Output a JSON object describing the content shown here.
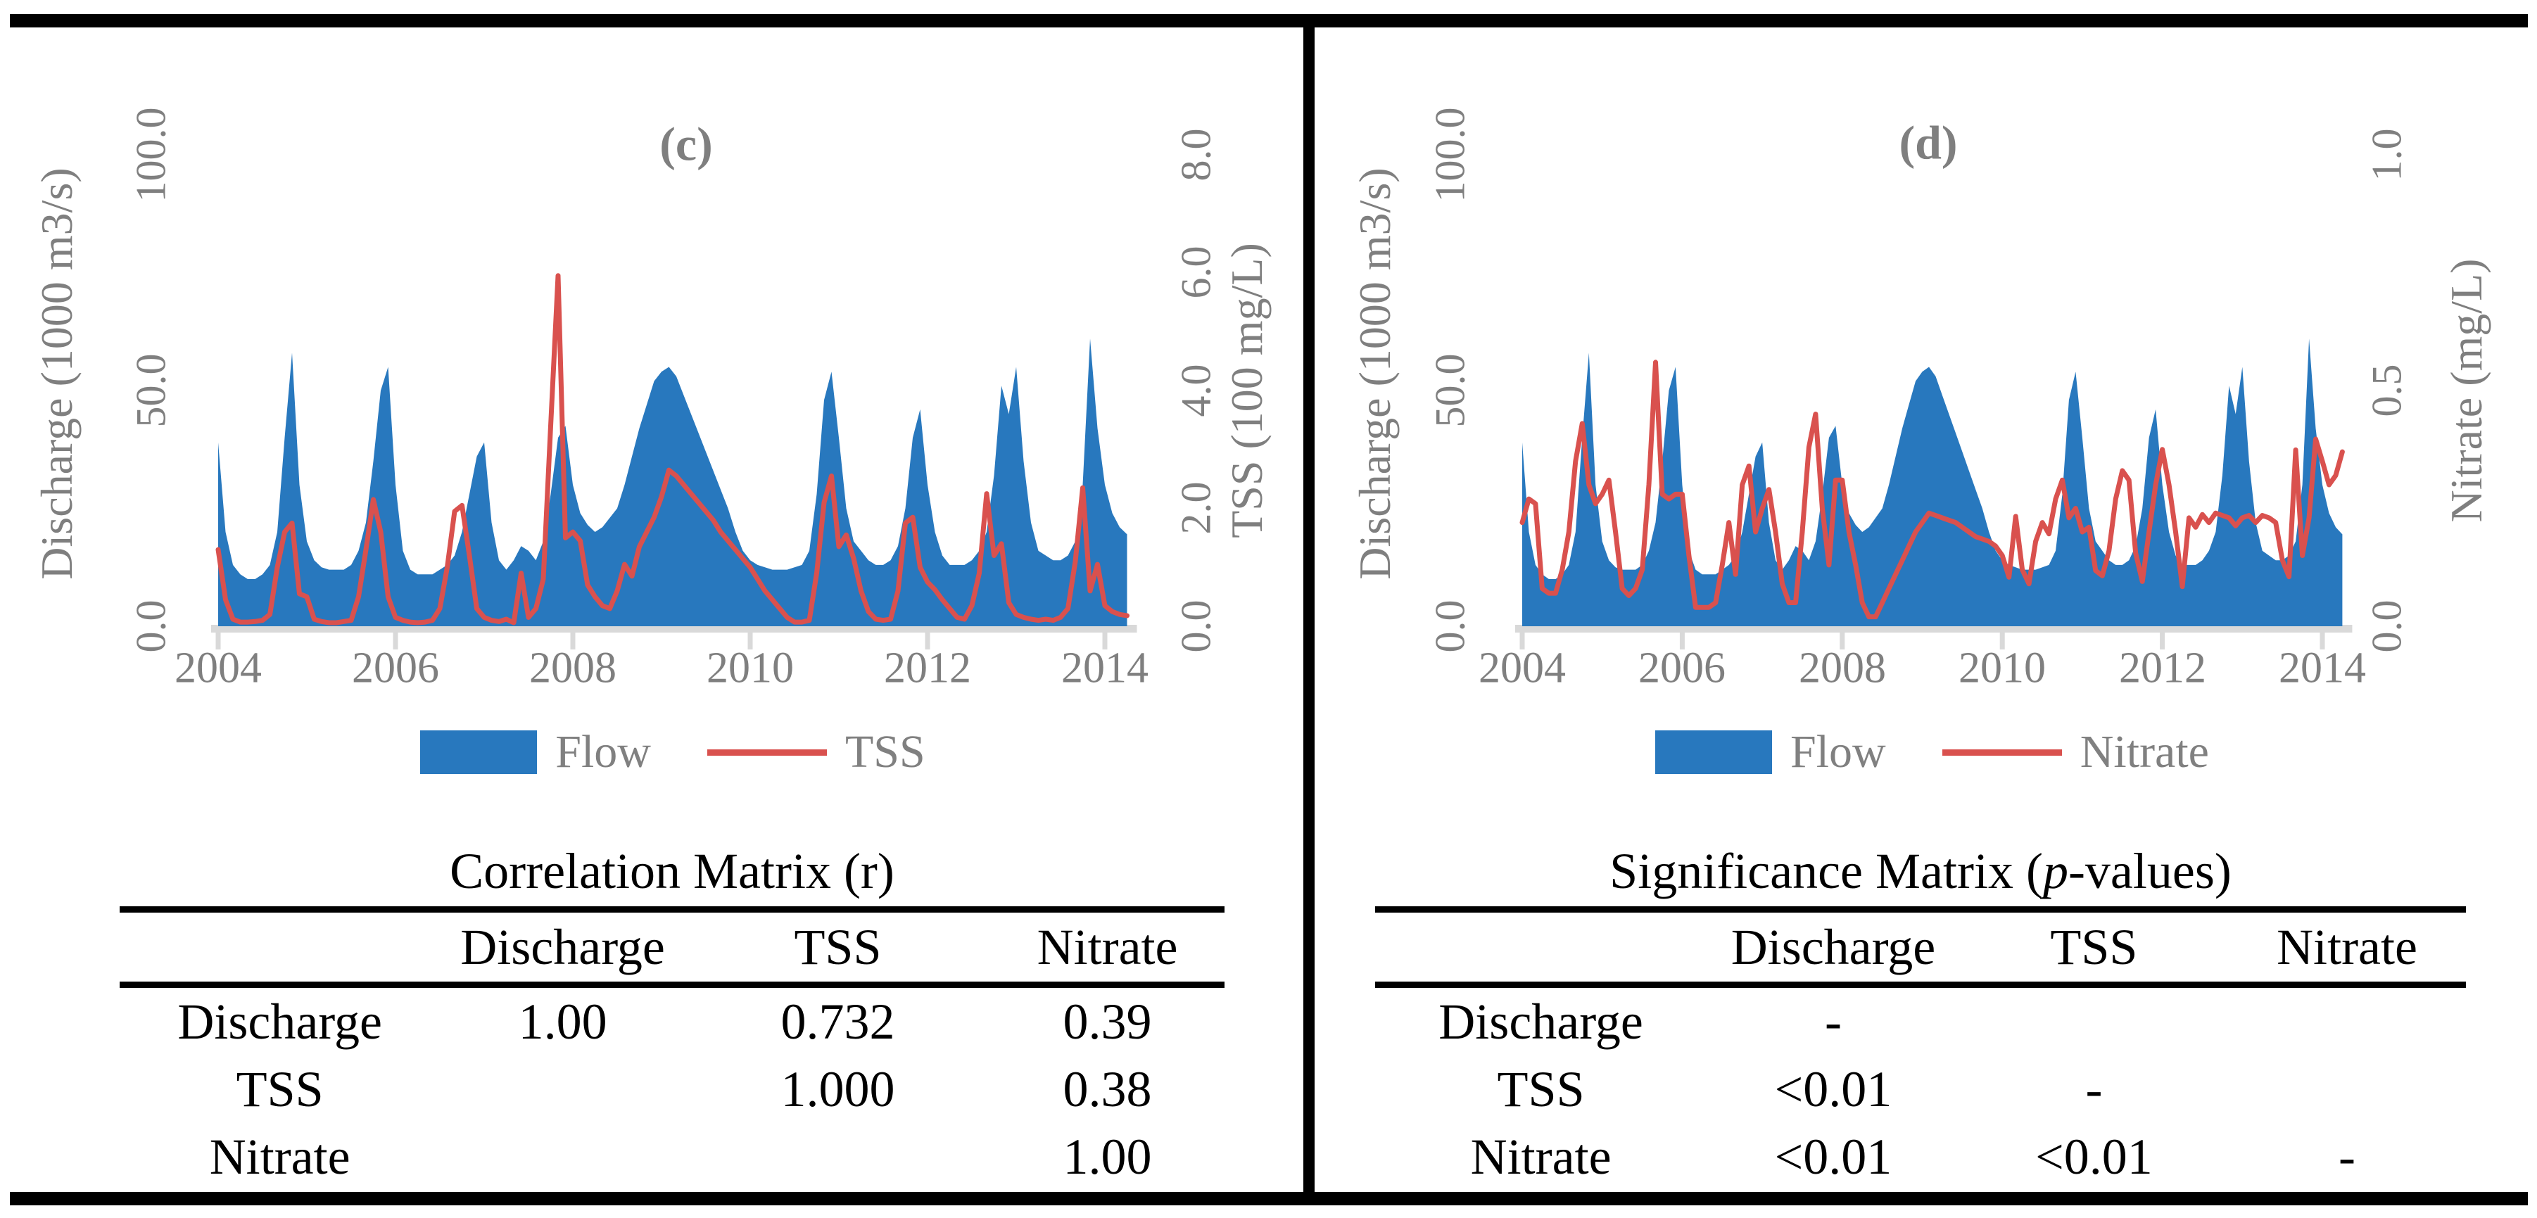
{
  "figure": {
    "panels": [
      {
        "id": "c",
        "title": "(c)",
        "axes": {
          "left": {
            "title": "Discharge (1000 m3/s)",
            "ticks": [
              "0.0",
              "50.0",
              "100.0"
            ],
            "range": [
              0,
              100
            ]
          },
          "right": {
            "title": "TSS (100 mg/L)",
            "ticks": [
              "0.0",
              "2.0",
              "4.0",
              "6.0",
              "8.0"
            ],
            "range": [
              0,
              8
            ]
          },
          "x": {
            "ticks": [
              "2004",
              "2006",
              "2008",
              "2010",
              "2012",
              "2014"
            ],
            "range": [
              2004,
              2014.25
            ]
          }
        },
        "legend": {
          "area_label": "Flow",
          "line_label": "TSS"
        },
        "table": {
          "title_prefix": "Correlation Matrix (r)",
          "title_italic": "",
          "title_suffix": "",
          "columns": [
            "",
            "Discharge",
            "TSS",
            "Nitrate"
          ],
          "rows": [
            [
              "Discharge",
              "1.00",
              "0.732",
              "0.39"
            ],
            [
              "TSS",
              "",
              "1.000",
              "0.38"
            ],
            [
              "Nitrate",
              "",
              "",
              "1.00"
            ]
          ]
        }
      },
      {
        "id": "d",
        "title": "(d)",
        "axes": {
          "left": {
            "title": "Discharge (1000 m3/s)",
            "ticks": [
              "0.0",
              "50.0",
              "100.0"
            ],
            "range": [
              0,
              100
            ]
          },
          "right": {
            "title": "Nitrate (mg/L)",
            "ticks": [
              "0.0",
              "0.5",
              "1.0"
            ],
            "range": [
              0,
              1
            ]
          },
          "x": {
            "ticks": [
              "2004",
              "2006",
              "2008",
              "2010",
              "2012",
              "2014"
            ],
            "range": [
              2004,
              2014.25
            ]
          }
        },
        "legend": {
          "area_label": "Flow",
          "line_label": "Nitrate"
        },
        "table": {
          "title_prefix": "Significance Matrix (",
          "title_italic": "p",
          "title_suffix": "-values)",
          "columns": [
            "",
            "Discharge",
            "TSS",
            "Nitrate"
          ],
          "rows": [
            [
              "Discharge",
              "-",
              "",
              ""
            ],
            [
              "TSS",
              "<0.01",
              "-",
              ""
            ],
            [
              "Nitrate",
              "<0.01",
              "<0.01",
              "-"
            ]
          ]
        }
      }
    ],
    "colors": {
      "flow_blue": "#2878BE",
      "line_red": "#D9514E",
      "axis_gray": "#7F7F7F",
      "strip_gray": "#D9D9D9",
      "frame_black": "#000000"
    }
  },
  "chart_data": [
    {
      "type": "area",
      "panel": "c",
      "title": "(c)",
      "xlabel": "",
      "x_start": 2004,
      "x_step": "month",
      "x_end": 2014.25,
      "x_tick_years": [
        2004,
        2006,
        2008,
        2010,
        2012,
        2014
      ],
      "grid": false,
      "legend_position": "bottom",
      "series": [
        {
          "name": "Flow",
          "type": "area",
          "axis": "left",
          "axis_label": "Discharge (1000 m3/s)",
          "ylim": [
            0,
            100
          ],
          "color": "#2878BE",
          "values": [
            39,
            20,
            13,
            11,
            10,
            10,
            11,
            13,
            20,
            40,
            58,
            30,
            18,
            14,
            12.5,
            12,
            12,
            12,
            13,
            16,
            22,
            35,
            50,
            55,
            30,
            16,
            12,
            11,
            11,
            11,
            12,
            13,
            15,
            20,
            28,
            36,
            39,
            22,
            14,
            12,
            14,
            17,
            16,
            14,
            18,
            28,
            40,
            42.5,
            30,
            24,
            21.5,
            20,
            21,
            23,
            25,
            30,
            36,
            42,
            47,
            52,
            54,
            55,
            53,
            49,
            45,
            41,
            37,
            33,
            29,
            25,
            20,
            16,
            14,
            13,
            12.5,
            12,
            12,
            12,
            12.5,
            13,
            16,
            28,
            48,
            54,
            40,
            25,
            18,
            16,
            14,
            13,
            13,
            14,
            17,
            25,
            40,
            46,
            30,
            20,
            15,
            13,
            13,
            13,
            14,
            16,
            20,
            32,
            51,
            45,
            55,
            35,
            22,
            16,
            15,
            14,
            14,
            15,
            18,
            30,
            61,
            42,
            30,
            24,
            21,
            19.5
          ]
        },
        {
          "name": "TSS",
          "type": "line",
          "axis": "right",
          "axis_label": "TSS (100 mg/L)",
          "ylim": [
            0,
            8
          ],
          "color": "#D9514E",
          "values": [
            1.3,
            0.45,
            0.12,
            0.07,
            0.07,
            0.08,
            0.1,
            0.2,
            1.0,
            1.6,
            1.75,
            0.55,
            0.5,
            0.12,
            0.08,
            0.06,
            0.06,
            0.08,
            0.1,
            0.5,
            1.3,
            2.15,
            1.6,
            0.5,
            0.15,
            0.1,
            0.07,
            0.06,
            0.07,
            0.1,
            0.3,
            1.0,
            1.95,
            2.05,
            1.2,
            0.3,
            0.15,
            0.1,
            0.08,
            0.12,
            0.06,
            0.9,
            0.15,
            0.3,
            0.8,
            3.4,
            5.95,
            1.5,
            1.6,
            1.45,
            0.7,
            0.5,
            0.35,
            0.3,
            0.6,
            1.05,
            0.85,
            1.35,
            1.6,
            1.85,
            2.2,
            2.65,
            2.55,
            2.4,
            2.25,
            2.1,
            1.95,
            1.8,
            1.6,
            1.45,
            1.3,
            1.15,
            1.0,
            0.8,
            0.6,
            0.45,
            0.3,
            0.15,
            0.07,
            0.07,
            0.1,
            0.9,
            2.1,
            2.55,
            1.35,
            1.55,
            1.15,
            0.6,
            0.25,
            0.12,
            0.1,
            0.12,
            0.6,
            1.75,
            1.85,
            1.0,
            0.75,
            0.62,
            0.45,
            0.3,
            0.15,
            0.12,
            0.35,
            0.9,
            2.25,
            1.2,
            1.4,
            0.4,
            0.2,
            0.15,
            0.12,
            0.1,
            0.12,
            0.1,
            0.15,
            0.3,
            1.1,
            2.35,
            0.6,
            1.05,
            0.35,
            0.25,
            0.2,
            0.18
          ]
        }
      ]
    },
    {
      "type": "area",
      "panel": "d",
      "title": "(d)",
      "xlabel": "",
      "x_start": 2004,
      "x_step": "month",
      "x_end": 2014.25,
      "x_tick_years": [
        2004,
        2006,
        2008,
        2010,
        2012,
        2014
      ],
      "grid": false,
      "legend_position": "bottom",
      "series": [
        {
          "name": "Flow",
          "type": "area",
          "axis": "left",
          "axis_label": "Discharge (1000 m3/s)",
          "ylim": [
            0,
            100
          ],
          "color": "#2878BE",
          "values": [
            39,
            20,
            13,
            11,
            10,
            10,
            11,
            13,
            20,
            40,
            58,
            30,
            18,
            14,
            12.5,
            12,
            12,
            12,
            13,
            16,
            22,
            35,
            50,
            55,
            30,
            16,
            12,
            11,
            11,
            11,
            12,
            13,
            15,
            20,
            28,
            36,
            39,
            22,
            14,
            12,
            14,
            17,
            16,
            14,
            18,
            28,
            40,
            42.5,
            30,
            24,
            21.5,
            20,
            21,
            23,
            25,
            30,
            36,
            42,
            47,
            52,
            54,
            55,
            53,
            49,
            45,
            41,
            37,
            33,
            29,
            25,
            20,
            16,
            14,
            13,
            12.5,
            12,
            12,
            12,
            12.5,
            13,
            16,
            28,
            48,
            54,
            40,
            25,
            18,
            16,
            14,
            13,
            13,
            14,
            17,
            25,
            40,
            46,
            30,
            20,
            15,
            13,
            13,
            13,
            14,
            16,
            20,
            32,
            51,
            45,
            55,
            35,
            22,
            16,
            15,
            14,
            14,
            15,
            18,
            30,
            61,
            42,
            30,
            24,
            21,
            19.5
          ]
        },
        {
          "name": "Nitrate",
          "type": "line",
          "axis": "right",
          "axis_label": "Nitrate (mg/L)",
          "ylim": [
            0,
            1
          ],
          "color": "#D9514E",
          "values": [
            0.22,
            0.27,
            0.26,
            0.08,
            0.07,
            0.07,
            0.12,
            0.2,
            0.35,
            0.43,
            0.3,
            0.26,
            0.28,
            0.31,
            0.2,
            0.08,
            0.065,
            0.08,
            0.12,
            0.3,
            0.56,
            0.28,
            0.27,
            0.28,
            0.28,
            0.15,
            0.04,
            0.04,
            0.04,
            0.05,
            0.13,
            0.22,
            0.11,
            0.3,
            0.34,
            0.2,
            0.25,
            0.29,
            0.2,
            0.09,
            0.05,
            0.05,
            0.2,
            0.38,
            0.45,
            0.25,
            0.13,
            0.31,
            0.31,
            0.2,
            0.13,
            0.05,
            0.02,
            0.02,
            0.05,
            0.08,
            0.11,
            0.14,
            0.17,
            0.2,
            0.22,
            0.24,
            0.235,
            0.23,
            0.225,
            0.22,
            0.21,
            0.2,
            0.19,
            0.185,
            0.18,
            0.17,
            0.15,
            0.104,
            0.233,
            0.12,
            0.09,
            0.18,
            0.22,
            0.196,
            0.27,
            0.31,
            0.23,
            0.25,
            0.2,
            0.21,
            0.118,
            0.107,
            0.16,
            0.27,
            0.33,
            0.31,
            0.155,
            0.095,
            0.2,
            0.3,
            0.375,
            0.3,
            0.2,
            0.084,
            0.23,
            0.21,
            0.237,
            0.22,
            0.24,
            0.235,
            0.23,
            0.213,
            0.23,
            0.235,
            0.22,
            0.235,
            0.23,
            0.22,
            0.14,
            0.105,
            0.374,
            0.15,
            0.23,
            0.397,
            0.35,
            0.3,
            0.32,
            0.37
          ]
        }
      ]
    }
  ]
}
